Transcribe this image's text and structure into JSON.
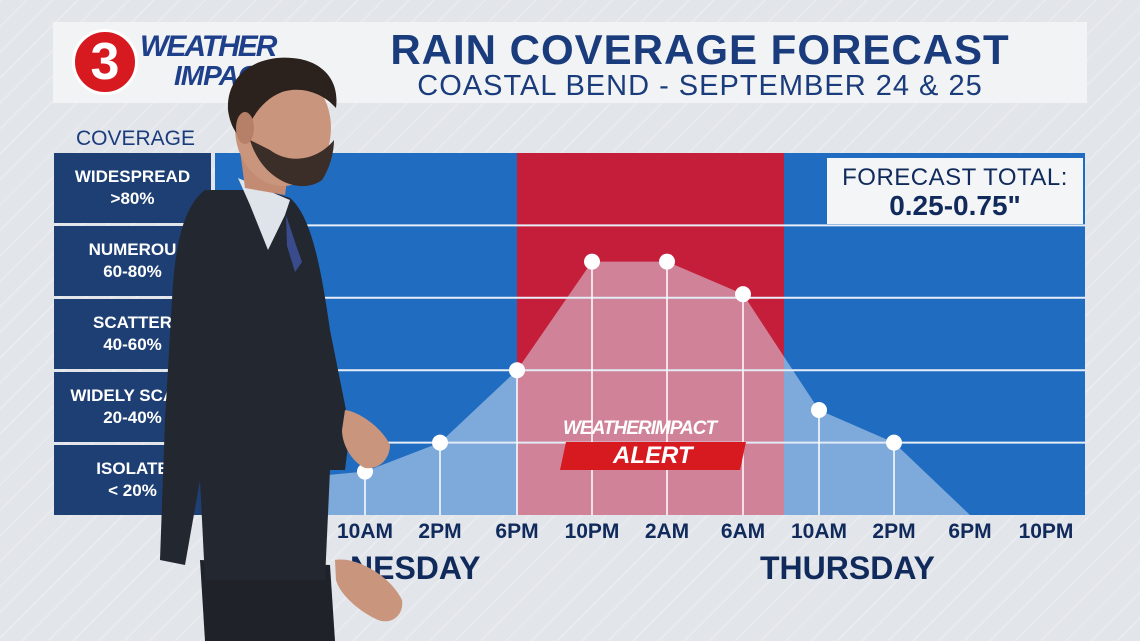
{
  "logo": {
    "number": "3",
    "line1": "WEATHER",
    "line2": "IMPACT"
  },
  "title": "RAIN COVERAGE FORECAST",
  "subtitle": "COASTAL BEND - SEPTEMBER 24 & 25",
  "coverage_label": "COVERAGE",
  "rows": [
    {
      "name": "WIDESPREAD",
      "range": ">80%"
    },
    {
      "name": "NUMEROU",
      "range": "60-80%"
    },
    {
      "name": "SCATTER",
      "range": "40-60%"
    },
    {
      "name": "WIDELY SCATT",
      "range": "20-40%"
    },
    {
      "name": "ISOLATE",
      "range": "< 20%"
    }
  ],
  "forecast_total": {
    "label": "FORECAST TOTAL:",
    "value": "0.25-0.75\""
  },
  "alert": {
    "logo_weather": "WEATHER",
    "logo_impact": "IMPACT",
    "text": "ALERT"
  },
  "days": {
    "first": "NESDAY",
    "second": "THURSDAY"
  },
  "colors": {
    "chart_blue": "#1f6cc0",
    "alert_red": "#c41e3a",
    "label_navy": "#1e3f74",
    "title_navy": "#1a3c7c"
  },
  "chart_data": {
    "type": "area",
    "title": "RAIN COVERAGE FORECAST",
    "x": [
      "10AM",
      "2PM",
      "6PM",
      "10PM",
      "2AM",
      "6AM",
      "10AM",
      "2PM",
      "6PM",
      "10PM"
    ],
    "y_unit": "% coverage",
    "ylim": [
      0,
      100
    ],
    "series": [
      {
        "values": [
          12,
          20,
          40,
          70,
          70,
          61,
          29,
          20,
          0,
          0
        ]
      }
    ],
    "alert_window": [
      "6PM",
      "6AM"
    ],
    "grid": true
  }
}
